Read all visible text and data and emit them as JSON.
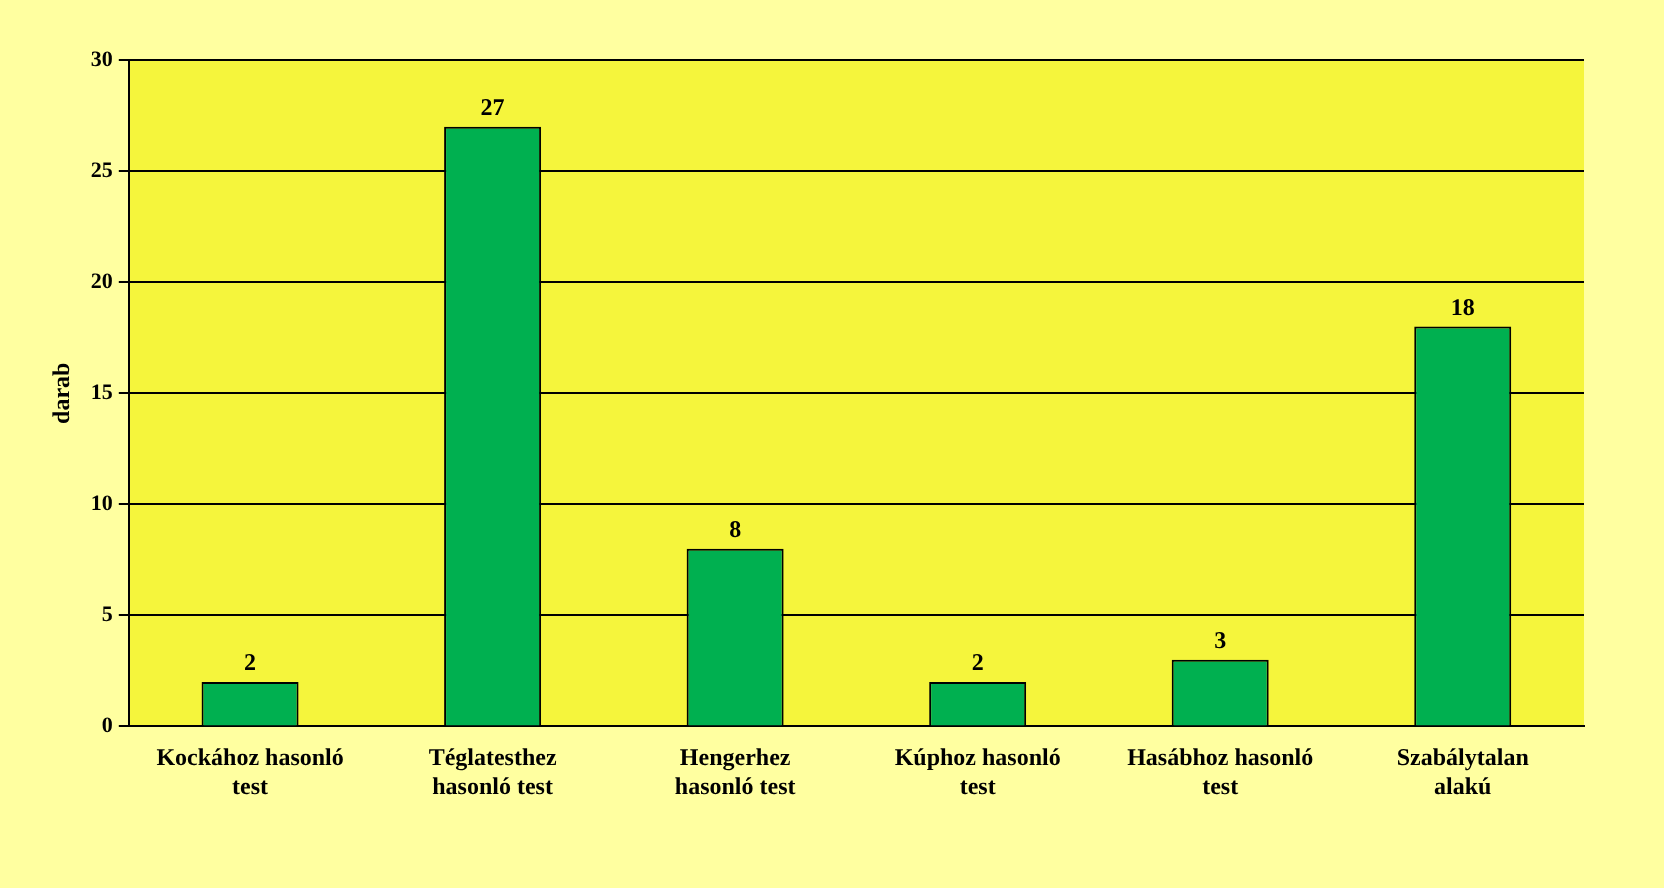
{
  "chart_data": {
    "type": "bar",
    "ylabel": "darab",
    "categories": [
      "Kockához hasonló test",
      "Téglatesthez hasonló test",
      "Hengerhez hasonló test",
      "Kúphoz hasonló test",
      "Hasábhoz hasonló test",
      "Szabálytalan alakú"
    ],
    "values": [
      2,
      27,
      8,
      2,
      3,
      18
    ],
    "color": "#00b050",
    "ylim": [
      0,
      30
    ],
    "yticks": [
      0,
      5,
      10,
      15,
      20,
      25,
      30
    ],
    "grid": "y",
    "data_labels": true
  }
}
